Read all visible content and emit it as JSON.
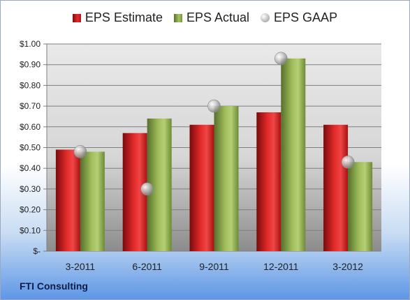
{
  "footer": {
    "company": "FTI Consulting"
  },
  "chart_data": {
    "type": "bar",
    "categories": [
      "3-2011",
      "6-2011",
      "9-2011",
      "12-2011",
      "3-2012"
    ],
    "series": [
      {
        "name": "EPS Estimate",
        "kind": "bar",
        "color": "#d01f1f",
        "values": [
          0.49,
          0.57,
          0.61,
          0.67,
          0.61
        ]
      },
      {
        "name": "EPS Actual",
        "kind": "bar",
        "color": "#8fae4a",
        "values": [
          0.48,
          0.64,
          0.7,
          0.93,
          0.43
        ]
      },
      {
        "name": "EPS GAAP",
        "kind": "scatter",
        "color": "#c8c8c8",
        "values": [
          0.48,
          0.3,
          0.7,
          0.93,
          0.43
        ]
      }
    ],
    "ylim": [
      0,
      1.0
    ],
    "yticks": [
      {
        "value": 0.0,
        "label": "$-"
      },
      {
        "value": 0.1,
        "label": "$0.10"
      },
      {
        "value": 0.2,
        "label": "$0.20"
      },
      {
        "value": 0.3,
        "label": "$0.30"
      },
      {
        "value": 0.4,
        "label": "$0.40"
      },
      {
        "value": 0.5,
        "label": "$0.50"
      },
      {
        "value": 0.6,
        "label": "$0.60"
      },
      {
        "value": 0.7,
        "label": "$0.70"
      },
      {
        "value": 0.8,
        "label": "$0.80"
      },
      {
        "value": 0.9,
        "label": "$0.90"
      },
      {
        "value": 1.0,
        "label": "$1.00"
      }
    ],
    "grid": true,
    "legend_position": "top"
  }
}
